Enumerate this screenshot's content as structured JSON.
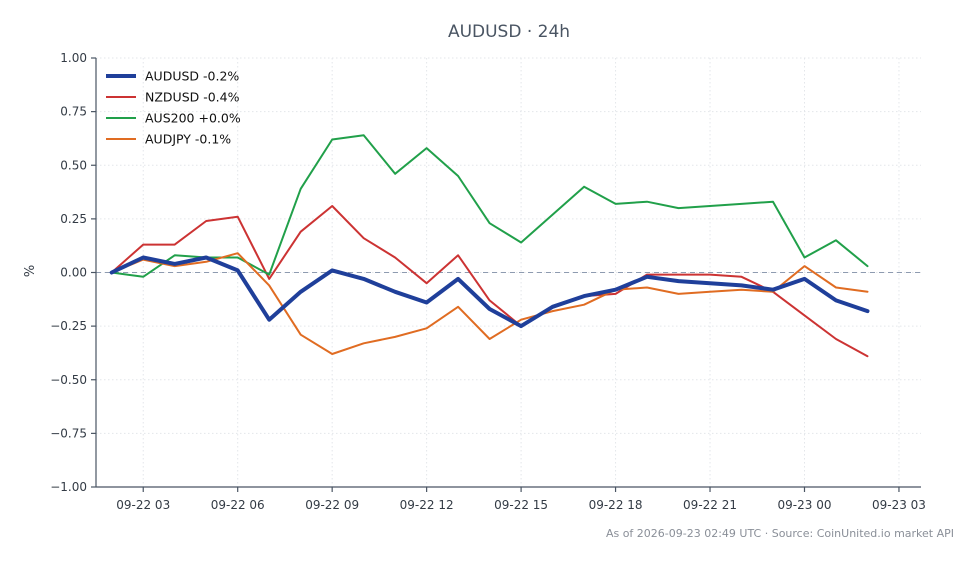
{
  "chart_data": {
    "type": "line",
    "title": "AUDUSD · 24h",
    "ylabel": "%",
    "xlabel": "",
    "ylim": [
      -1.0,
      1.0
    ],
    "xlim": [
      1.5,
      27.7
    ],
    "yticks": [
      1.0,
      0.75,
      0.5,
      0.25,
      0.0,
      -0.25,
      -0.5,
      -0.75,
      -1.0
    ],
    "ytick_labels": [
      "1.00",
      "0.75",
      "0.50",
      "0.25",
      "0.00",
      "−0.25",
      "−0.50",
      "−0.75",
      "−1.00"
    ],
    "xticks": [
      3,
      6,
      9,
      12,
      15,
      18,
      21,
      24,
      27
    ],
    "xtick_labels": [
      "09-22 03",
      "09-22 06",
      "09-22 09",
      "09-22 12",
      "09-22 15",
      "09-22 18",
      "09-22 21",
      "09-23 00",
      "09-23 03"
    ],
    "grid": true,
    "legend_position": "top-left",
    "zero_line": true,
    "series": [
      {
        "name": "AUDUSD -0.2%",
        "color": "#1f3f9a",
        "width": 4,
        "x": [
          2,
          3,
          4,
          5,
          6,
          7,
          8,
          9,
          10,
          11,
          12,
          13,
          14,
          15,
          16,
          17,
          18,
          19,
          20,
          21,
          22,
          23,
          24,
          25,
          26
        ],
        "y": [
          0.0,
          0.07,
          0.04,
          0.07,
          0.01,
          -0.22,
          -0.09,
          0.01,
          -0.03,
          -0.09,
          -0.14,
          -0.03,
          -0.17,
          -0.25,
          -0.16,
          -0.11,
          -0.08,
          -0.02,
          -0.04,
          -0.05,
          -0.06,
          -0.08,
          -0.03,
          -0.13,
          -0.18
        ]
      },
      {
        "name": "NZDUSD -0.4%",
        "color": "#cc3333",
        "width": 2,
        "x": [
          2,
          3,
          4,
          5,
          6,
          7,
          8,
          9,
          10,
          11,
          12,
          13,
          14,
          15,
          16,
          17,
          18,
          19,
          20,
          21,
          22,
          23,
          24,
          25,
          26
        ],
        "y": [
          0.0,
          0.13,
          0.13,
          0.24,
          0.26,
          -0.03,
          0.19,
          0.31,
          0.16,
          0.07,
          -0.05,
          0.08,
          -0.13,
          -0.25,
          -0.16,
          -0.11,
          -0.1,
          -0.01,
          -0.01,
          -0.01,
          -0.02,
          -0.09,
          -0.2,
          -0.31,
          -0.39
        ]
      },
      {
        "name": "AUS200 +0.0%",
        "color": "#21a04a",
        "width": 2,
        "x": [
          2,
          3,
          4,
          5,
          6,
          7,
          8,
          9,
          10,
          11,
          12,
          13,
          14,
          15,
          16,
          17,
          18,
          19,
          20,
          21,
          22,
          23,
          24,
          25,
          26
        ],
        "y": [
          0.0,
          -0.02,
          0.08,
          0.07,
          0.07,
          -0.01,
          0.39,
          0.62,
          0.64,
          0.46,
          0.58,
          0.45,
          0.23,
          0.14,
          0.27,
          0.4,
          0.32,
          0.33,
          0.3,
          0.31,
          0.32,
          0.33,
          0.07,
          0.15,
          0.03
        ]
      },
      {
        "name": "AUDJPY -0.1%",
        "color": "#e06c22",
        "width": 2,
        "x": [
          2,
          3,
          4,
          5,
          6,
          7,
          8,
          9,
          10,
          11,
          12,
          13,
          14,
          15,
          16,
          17,
          18,
          19,
          20,
          21,
          22,
          23,
          24,
          25,
          26
        ],
        "y": [
          0.0,
          0.06,
          0.03,
          0.05,
          0.09,
          -0.06,
          -0.29,
          -0.38,
          -0.33,
          -0.3,
          -0.26,
          -0.16,
          -0.31,
          -0.22,
          -0.18,
          -0.15,
          -0.08,
          -0.07,
          -0.1,
          -0.09,
          -0.08,
          -0.09,
          0.03,
          -0.07,
          -0.09
        ]
      }
    ]
  },
  "footer_text": "As of 2026-09-23 02:49 UTC · Source: CoinUnited.io market API"
}
